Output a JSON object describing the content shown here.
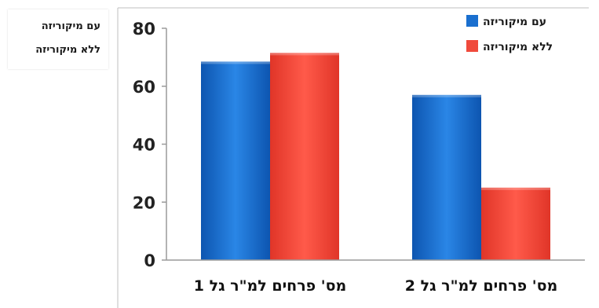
{
  "side_legend": {
    "items": [
      "עם מיקוריזה",
      "ללא מיקוריזה"
    ]
  },
  "chart_data": {
    "type": "bar",
    "categories": [
      "מס' פרחים למ\"ר גל 1",
      "מס' פרחים למ\"ר גל 2"
    ],
    "series": [
      {
        "name": "עם מיקוריזה",
        "values": [
          68.5,
          57
        ],
        "color": "#1a6fcf"
      },
      {
        "name": "ללא מיקוריזה",
        "values": [
          71.5,
          25
        ],
        "color": "#f04a3c"
      }
    ],
    "ylim": [
      0,
      80
    ],
    "yticks": [
      "0",
      "20",
      "40",
      "60",
      "80"
    ],
    "grid": false,
    "legend": "top-right",
    "title": "",
    "xlabel": "",
    "ylabel": ""
  }
}
